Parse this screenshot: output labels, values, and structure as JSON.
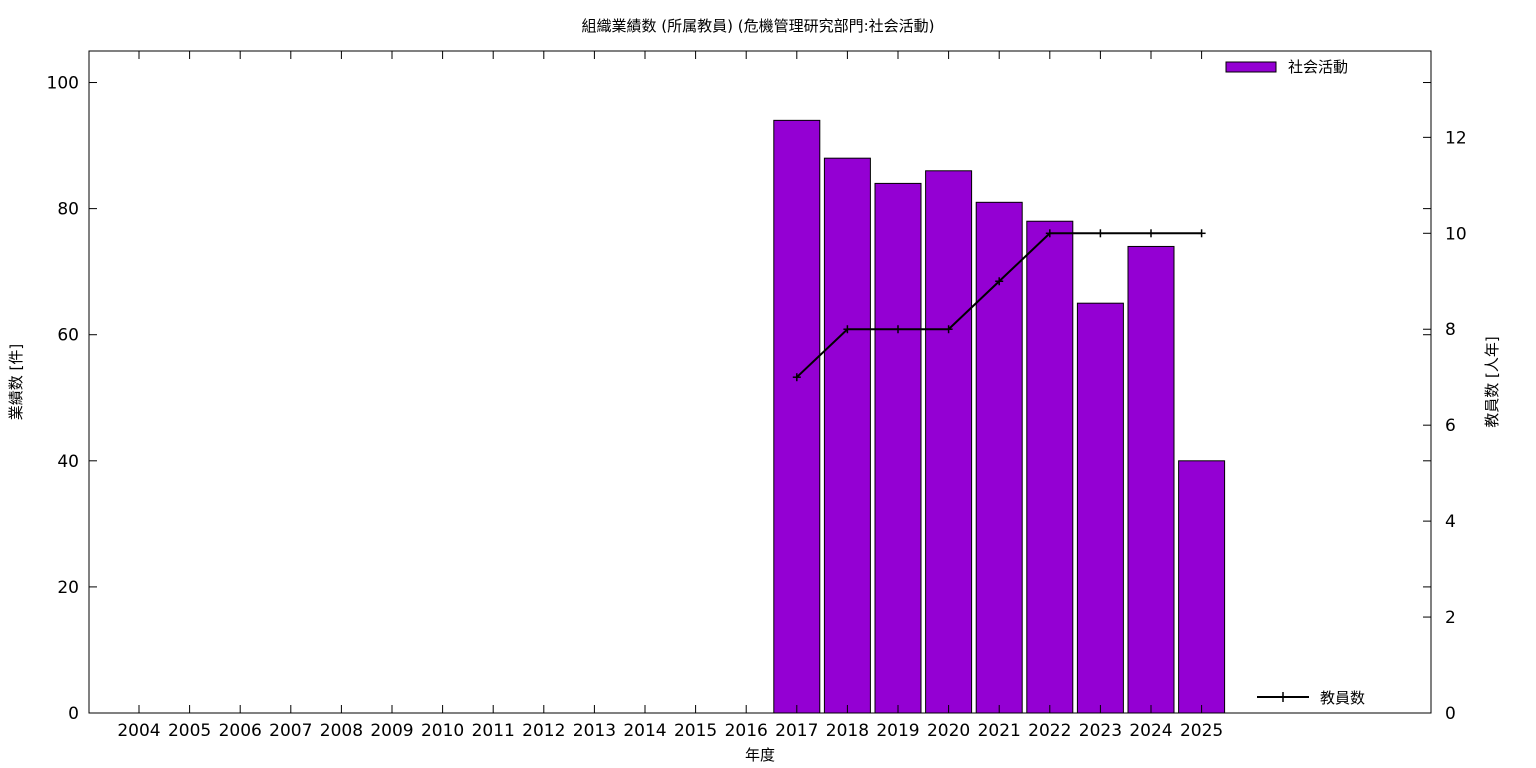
{
  "chart_data": {
    "type": "bar",
    "title": "組織業績数 (所属教員) (危機管理研究部門:社会活動)",
    "xlabel": "年度",
    "ylabel": "業績数 [件]",
    "y2label": "教員数 [人年]",
    "categories": [
      "2004",
      "2005",
      "2006",
      "2007",
      "2008",
      "2009",
      "2010",
      "2011",
      "2012",
      "2013",
      "2014",
      "2015",
      "2016",
      "2017",
      "2018",
      "2019",
      "2020",
      "2021",
      "2022",
      "2023",
      "2024",
      "2025"
    ],
    "series": [
      {
        "name": "社会活動",
        "type": "bar",
        "axis": "left",
        "color": "#9400d3",
        "values": [
          0,
          0,
          0,
          0,
          0,
          0,
          0,
          0,
          0,
          0,
          0,
          0,
          0,
          94,
          88,
          84,
          86,
          81,
          78,
          65,
          74,
          40
        ]
      },
      {
        "name": "教員数",
        "type": "line",
        "axis": "right",
        "color": "#000000",
        "values": [
          null,
          null,
          null,
          null,
          null,
          null,
          null,
          null,
          null,
          null,
          null,
          null,
          null,
          7,
          8,
          8,
          8,
          9,
          10,
          10,
          10,
          10
        ]
      }
    ],
    "ylim": [
      0,
      105
    ],
    "yticks": [
      0,
      20,
      40,
      60,
      80,
      100
    ],
    "y2lim": [
      0,
      13.8
    ],
    "y2ticks": [
      0,
      2,
      4,
      6,
      8,
      10,
      12
    ],
    "grid": false,
    "legend_placement": "top-right (bars), bottom-right (line)"
  }
}
